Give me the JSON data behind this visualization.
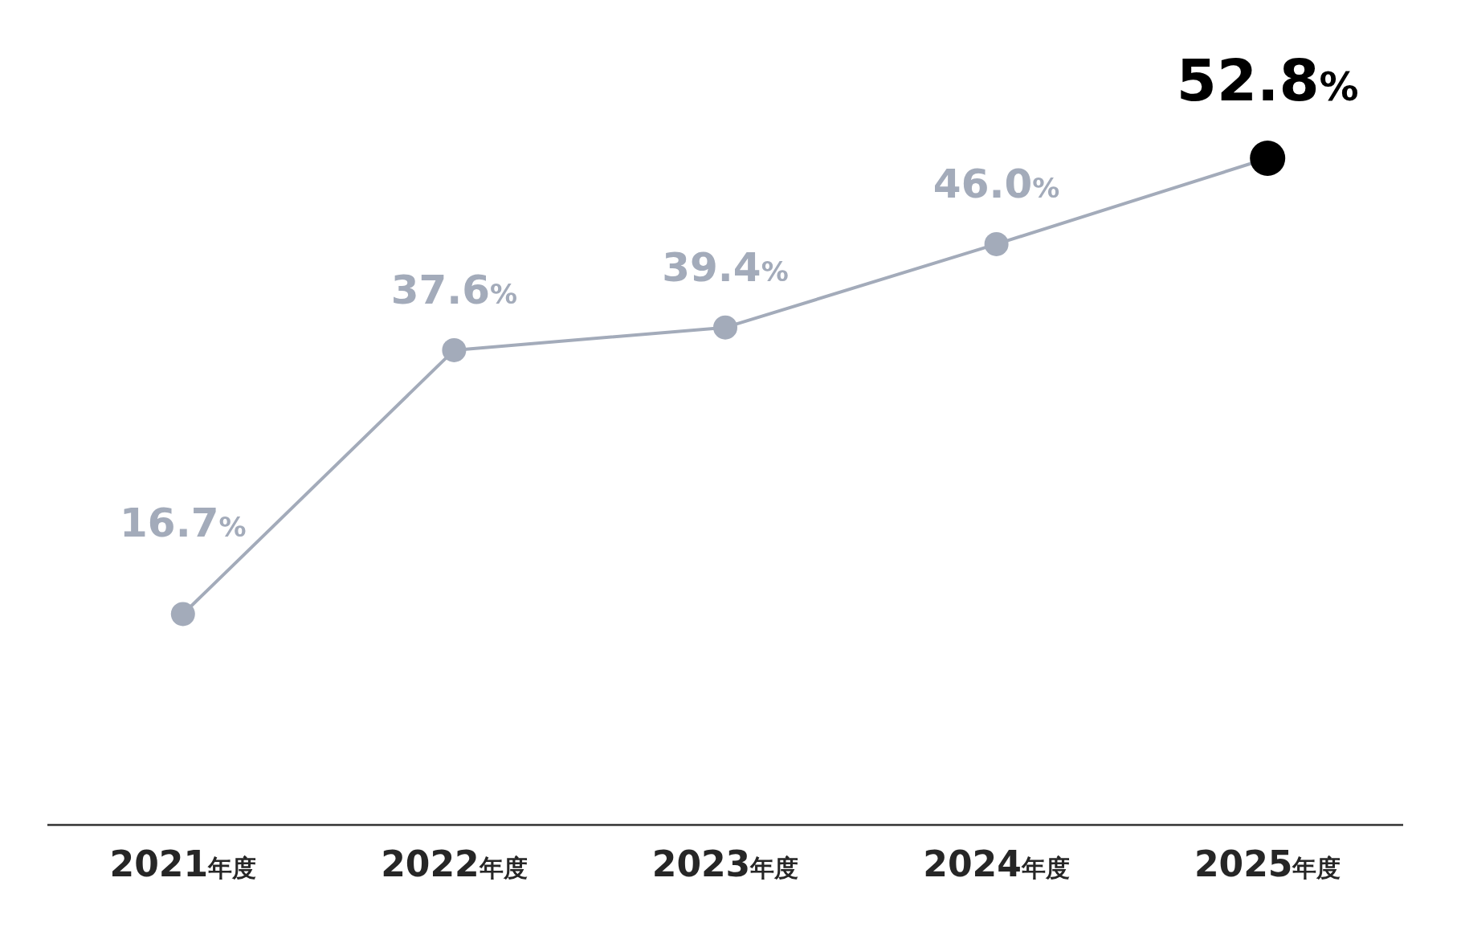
{
  "chart_data": {
    "type": "line",
    "categories": [
      "2021年度",
      "2022年度",
      "2023年度",
      "2024年度",
      "2025年度"
    ],
    "series": [
      {
        "color": "#a3abba",
        "values": [
          16.7,
          37.6,
          39.4,
          46.0,
          52.8
        ],
        "colors": [
          "#a3abba",
          "#a3abba",
          "#a3abba",
          "#a3abba",
          "#000000"
        ],
        "value_labels": [
          "16.7%",
          "37.6%",
          "39.4%",
          "46.0%",
          "52.8%"
        ]
      }
    ],
    "marker": "circle",
    "line_style": "solid",
    "tick_labels": "x"
  }
}
